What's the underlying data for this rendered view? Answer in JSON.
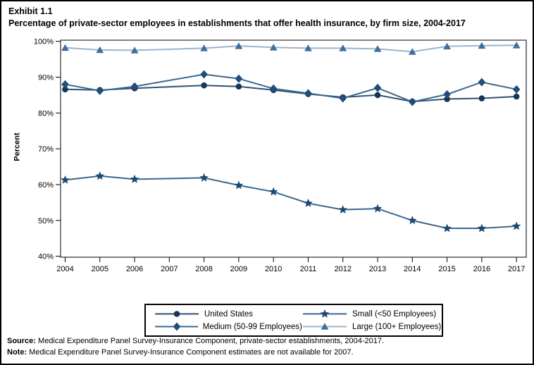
{
  "header": {
    "exhibit_label": "Exhibit 1.1",
    "title": "Percentage of private-sector employees in establishments that offer health insurance, by firm size, 2004-2017"
  },
  "y_axis_label": "Percent",
  "footer": {
    "source_label": "Source:",
    "source_text": " Medical Expenditure Panel Survey-Insurance Component, private-sector establishments, 2004-2017.",
    "note_label": "Note:",
    "note_text": " Medical Expenditure Panel Survey-Insurance Component estimates are not available for 2007."
  },
  "chart_data": {
    "type": "line",
    "title": "Percentage of private-sector employees in establishments that offer health insurance, by firm size, 2004-2017",
    "xlabel": "",
    "ylabel": "Percent",
    "x": [
      2004,
      2005,
      2006,
      2007,
      2008,
      2009,
      2010,
      2011,
      2012,
      2013,
      2014,
      2015,
      2016,
      2017
    ],
    "yticks": [
      100,
      90,
      80,
      70,
      60,
      50,
      40
    ],
    "ytick_suffix": "%",
    "ylim": [
      39.7,
      100.4
    ],
    "grid": false,
    "legend_position": "bottom-box",
    "missing_data_note": "2007 estimates not available; lines connect 2006 to 2008",
    "series": [
      {
        "name": "United States",
        "marker": "circle",
        "marker_color": "#16375a",
        "line_color": "#33526e",
        "values": [
          86.6,
          86.4,
          86.9,
          null,
          87.7,
          87.4,
          86.4,
          85.3,
          84.4,
          85.0,
          83.2,
          83.9,
          84.1,
          84.6
        ]
      },
      {
        "name": "Medium (50-99 Employees)",
        "marker": "diamond",
        "marker_color": "#1f4e79",
        "line_color": "#39688f",
        "values": [
          88.0,
          86.2,
          87.4,
          null,
          90.8,
          89.6,
          86.8,
          85.5,
          84.1,
          87.0,
          83.1,
          85.2,
          88.6,
          86.6
        ]
      },
      {
        "name": "Small (<50 Employees)",
        "marker": "star",
        "marker_color": "#1a4a74",
        "line_color": "#39688f",
        "values": [
          61.3,
          62.4,
          61.5,
          null,
          61.9,
          59.8,
          58.0,
          54.8,
          53.0,
          53.3,
          50.0,
          47.8,
          47.8,
          48.4
        ]
      },
      {
        "name": "Large (100+ Employees)",
        "marker": "triangle",
        "marker_color": "#3f6f9f",
        "line_color": "#9db4ca",
        "values": [
          98.2,
          97.6,
          97.5,
          null,
          98.1,
          98.7,
          98.3,
          98.1,
          98.1,
          97.9,
          97.1,
          98.6,
          98.8,
          98.9
        ]
      }
    ],
    "legend_order": [
      0,
      2,
      1,
      3
    ]
  }
}
